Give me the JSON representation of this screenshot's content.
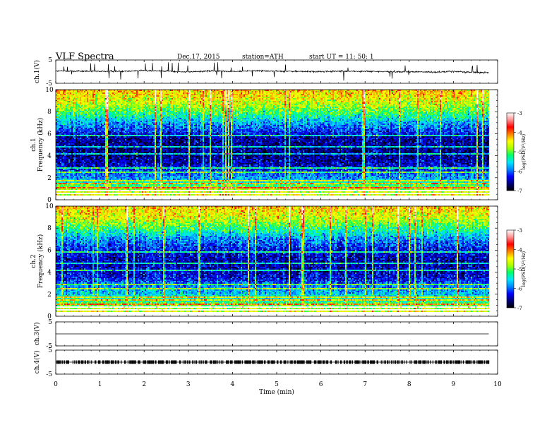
{
  "header": {
    "title": "VLF  Spectra",
    "date": "Dec.17, 2015",
    "station": "station=ATH",
    "start": "start  UT =    11: 50: 1"
  },
  "colors": {
    "background": "#ffffff",
    "trace": "#000000",
    "colormap": [
      "#000000",
      "#00007a",
      "#0000ff",
      "#0088ff",
      "#00e6ff",
      "#00ff6a",
      "#aaff00",
      "#ffff00",
      "#ff8000",
      "#ff0000",
      "#ff9090",
      "#ffffff"
    ]
  },
  "chart_data": [
    {
      "id": "ch1-waveform",
      "type": "line",
      "ylabel": "ch.1(V)",
      "ylim": [
        -5,
        5
      ],
      "yticks": [
        "5",
        "-5"
      ],
      "x": [
        0,
        0.5,
        1,
        1.5,
        2,
        2.5,
        3,
        3.5,
        4,
        4.5,
        5,
        5.5,
        6,
        6.5,
        7,
        7.5,
        8,
        8.5,
        9,
        9.5,
        9.8
      ],
      "y": [
        0.3,
        0.2,
        0.1,
        0.2,
        0.5,
        0.2,
        -0.1,
        0.3,
        0.1,
        0.4,
        0.2,
        0.1,
        0.0,
        0.2,
        0.1,
        0.0,
        0.0,
        -0.2,
        0.1,
        -0.3,
        -0.4
      ],
      "xlim": [
        0,
        10
      ]
    },
    {
      "id": "ch1-spectrogram",
      "type": "heatmap",
      "ylabel": "ch.1\nFrequency  (kHz)",
      "ylim": [
        0,
        10
      ],
      "yticks": [
        "0",
        "2",
        "4",
        "6",
        "8",
        "10"
      ],
      "xlim": [
        0,
        10
      ],
      "data_end_min": 9.8,
      "colorbar": {
        "label": "log(PSD(V²/Hz)",
        "range": [
          -7,
          -3
        ],
        "ticks": [
          "-3",
          "-4",
          "-5",
          "-6",
          "-7"
        ]
      },
      "freq_profile": {
        "freq_khz": [
          0,
          0.5,
          1,
          1.5,
          2,
          2.5,
          3,
          3.5,
          4,
          5,
          5.8,
          6.2,
          7,
          8,
          9,
          10
        ],
        "level": [
          -4.2,
          -4.6,
          -4.8,
          -5.2,
          -5.8,
          -6.0,
          -6.3,
          -6.5,
          -6.6,
          -6.6,
          -6.5,
          -6.2,
          -5.8,
          -5.1,
          -4.6,
          -4.3
        ]
      }
    },
    {
      "id": "ch2-spectrogram",
      "type": "heatmap",
      "ylabel": "ch.2\nFrequency  (kHz)",
      "ylim": [
        0,
        10
      ],
      "yticks": [
        "0",
        "2",
        "4",
        "6",
        "8",
        "10"
      ],
      "xlim": [
        0,
        10
      ],
      "data_end_min": 9.8,
      "colorbar": {
        "label": "log(PSD(V²/Hz)",
        "range": [
          -7,
          -3
        ],
        "ticks": [
          "-3",
          "-4",
          "-5",
          "-6",
          "-7"
        ]
      },
      "freq_profile": {
        "freq_khz": [
          0,
          0.5,
          1,
          1.5,
          2,
          2.5,
          3,
          3.5,
          4,
          5,
          6,
          7,
          8,
          9,
          10
        ],
        "level": [
          -4.3,
          -4.6,
          -5.0,
          -5.3,
          -5.6,
          -5.8,
          -6.0,
          -6.3,
          -6.4,
          -6.5,
          -6.3,
          -5.9,
          -5.2,
          -4.6,
          -4.3
        ]
      }
    },
    {
      "id": "ch3-waveform",
      "type": "line",
      "ylabel": "ch.3(V)",
      "ylim": [
        -5,
        5
      ],
      "yticks": [
        "5",
        "-5"
      ],
      "x": [
        0,
        9.8
      ],
      "y": [
        0,
        0
      ],
      "xlim": [
        0,
        10
      ]
    },
    {
      "id": "ch4-waveform",
      "type": "line",
      "ylabel": "ch.4(V)",
      "ylim": [
        -5,
        5
      ],
      "yticks": [
        "5",
        "-5"
      ],
      "x": [
        0,
        9.8
      ],
      "y": [
        0,
        0
      ],
      "xlim": [
        0,
        10
      ],
      "xlabel": "Time  (min)",
      "xticks": [
        "0",
        "1",
        "2",
        "3",
        "4",
        "5",
        "6",
        "7",
        "8",
        "9",
        "10"
      ]
    }
  ]
}
